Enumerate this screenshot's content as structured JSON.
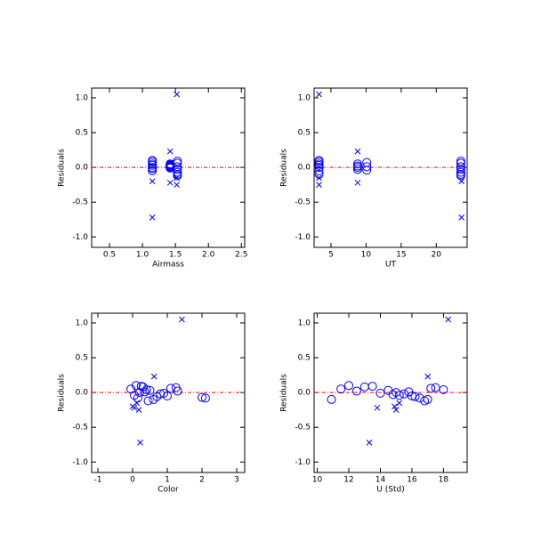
{
  "chart_data": [
    {
      "type": "scatter",
      "xlabel": "Airmass",
      "ylabel": "Residuals",
      "xlim": [
        0.23,
        2.55
      ],
      "ylim": [
        -1.15,
        1.14
      ],
      "xticks": [
        0.5,
        {
          "value": 1,
          "label": "1.0"
        },
        1.5,
        {
          "value": 2,
          "label": "2.0"
        },
        2.5
      ],
      "yticks": [
        {
          "value": 1,
          "label": "1.0"
        },
        0.5,
        {
          "value": 0,
          "label": "0.0"
        },
        -0.5,
        {
          "value": -1,
          "label": "-1.0"
        }
      ],
      "hline": {
        "value": 0,
        "color": "#ff0000"
      },
      "series": [
        {
          "marker": "o",
          "color": "#0000ff",
          "x": [
            1.15,
            1.15,
            1.15,
            1.15,
            1.15,
            1.15,
            1.15,
            1.42,
            1.42,
            1.42,
            1.42,
            1.42,
            1.42,
            1.42,
            1.53,
            1.53,
            1.53,
            1.53,
            1.53,
            1.53,
            1.53
          ],
          "values": [
            0.1,
            0.08,
            0.05,
            0.03,
            0.0,
            -0.02,
            -0.05,
            0.05,
            0.04,
            0.02,
            0.01,
            -0.01,
            0.03,
            0.0,
            0.09,
            0.06,
            0.01,
            -0.03,
            -0.07,
            -0.1,
            -0.12
          ]
        },
        {
          "marker": "x",
          "color": "#0000ff",
          "x": [
            1.52,
            1.15,
            1.42,
            1.42,
            1.52,
            1.15,
            1.52
          ],
          "values": [
            1.05,
            -0.72,
            0.23,
            -0.22,
            -0.25,
            -0.2,
            -0.15
          ]
        }
      ]
    },
    {
      "type": "scatter",
      "xlabel": "UT",
      "ylabel": "Residuals",
      "xlim": [
        2.6,
        24.4
      ],
      "ylim": [
        -1.15,
        1.14
      ],
      "xticks": [
        5,
        10,
        15,
        20
      ],
      "yticks": [
        {
          "value": 1,
          "label": "1.0"
        },
        0.5,
        {
          "value": 0,
          "label": "0.0"
        },
        -0.5,
        {
          "value": -1,
          "label": "-1.0"
        }
      ],
      "hline": {
        "value": 0,
        "color": "#ff0000"
      },
      "series": [
        {
          "marker": "o",
          "color": "#0000ff",
          "x": [
            3.3,
            3.3,
            3.3,
            3.3,
            3.3,
            3.3,
            3.3,
            8.8,
            8.8,
            8.8,
            8.8,
            10.1,
            10.1,
            10.1,
            23.5,
            23.5,
            23.5,
            23.5,
            23.5,
            23.5,
            23.5
          ],
          "values": [
            0.1,
            0.08,
            0.05,
            0.03,
            0.0,
            -0.05,
            -0.1,
            0.05,
            0.02,
            0.0,
            -0.03,
            0.07,
            0.01,
            -0.04,
            0.09,
            0.06,
            0.01,
            -0.03,
            -0.07,
            -0.1,
            -0.12
          ]
        },
        {
          "marker": "x",
          "color": "#0000ff",
          "x": [
            3.3,
            23.6,
            8.8,
            8.8,
            3.3,
            23.6,
            3.3
          ],
          "values": [
            1.05,
            -0.72,
            0.23,
            -0.22,
            -0.25,
            -0.2,
            -0.15
          ]
        }
      ]
    },
    {
      "type": "scatter",
      "xlabel": "Color",
      "ylabel": "Residuals",
      "xlim": [
        -1.18,
        3.23
      ],
      "ylim": [
        -1.15,
        1.14
      ],
      "xticks": [
        -1,
        0,
        1,
        2,
        3
      ],
      "yticks": [
        {
          "value": 1,
          "label": "1.0"
        },
        0.5,
        {
          "value": 0,
          "label": "0.0"
        },
        -0.5,
        {
          "value": -1,
          "label": "-1.0"
        }
      ],
      "hline": {
        "value": 0,
        "color": "#ff0000"
      },
      "series": [
        {
          "marker": "o",
          "color": "#0000ff",
          "x": [
            0.1,
            0.3,
            -0.05,
            0.5,
            0.2,
            0.8,
            1.0,
            0.15,
            0.6,
            1.25,
            0.4,
            1.3,
            0.9,
            0.05,
            0.7,
            0.25,
            1.1,
            0.35,
            2.0,
            2.1,
            0.45
          ],
          "values": [
            0.1,
            0.08,
            0.05,
            0.03,
            0.0,
            -0.02,
            -0.05,
            -0.08,
            -0.1,
            0.07,
            0.04,
            0.02,
            -0.01,
            -0.04,
            -0.06,
            0.09,
            0.06,
            0.01,
            -0.07,
            -0.08,
            -0.12
          ]
        },
        {
          "marker": "x",
          "color": "#0000ff",
          "x": [
            1.42,
            0.22,
            0.62,
            0.05,
            0.18,
            0.0,
            0.12
          ],
          "values": [
            1.05,
            -0.72,
            0.23,
            -0.22,
            -0.25,
            -0.2,
            -0.15
          ]
        }
      ]
    },
    {
      "type": "scatter",
      "xlabel": "U (Std)",
      "ylabel": "Residuals",
      "xlim": [
        9.8,
        19.5
      ],
      "ylim": [
        -1.15,
        1.14
      ],
      "xticks": [
        10,
        12,
        14,
        16,
        18
      ],
      "yticks": [
        {
          "value": 1,
          "label": "1.0"
        },
        0.5,
        {
          "value": 0,
          "label": "0.0"
        },
        -0.5,
        {
          "value": -1,
          "label": "-1.0"
        }
      ],
      "hline": {
        "value": 0,
        "color": "#ff0000"
      },
      "series": [
        {
          "marker": "o",
          "color": "#0000ff",
          "x": [
            12.0,
            13.0,
            11.5,
            14.5,
            15.0,
            15.5,
            16.0,
            16.5,
            17.0,
            17.5,
            18.0,
            12.5,
            14.0,
            15.2,
            16.2,
            13.5,
            17.2,
            15.8,
            10.9,
            14.8,
            16.8
          ],
          "values": [
            0.1,
            0.08,
            0.05,
            0.03,
            0.0,
            -0.02,
            -0.05,
            -0.08,
            -0.1,
            0.07,
            0.04,
            0.02,
            -0.01,
            -0.04,
            -0.06,
            0.09,
            0.06,
            0.01,
            -0.1,
            -0.03,
            -0.12
          ]
        },
        {
          "marker": "x",
          "color": "#0000ff",
          "x": [
            18.3,
            13.3,
            17.0,
            13.8,
            15.0,
            14.9,
            15.2
          ],
          "values": [
            1.05,
            -0.72,
            0.23,
            -0.22,
            -0.25,
            -0.2,
            -0.15
          ]
        }
      ]
    }
  ]
}
